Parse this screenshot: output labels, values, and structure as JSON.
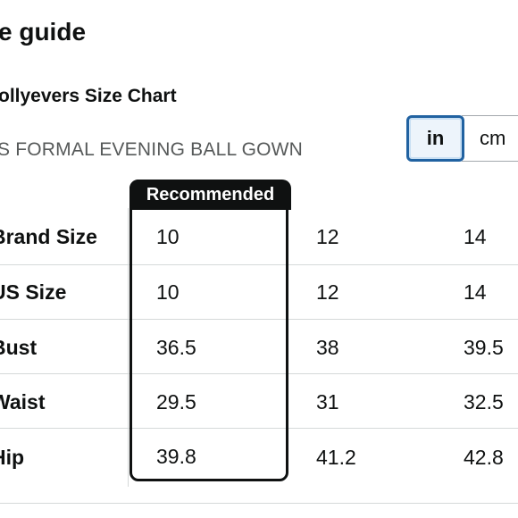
{
  "header": {
    "title": "e guide",
    "chart_name": "ollyevers Size Chart",
    "product": "S FORMAL EVENING BALL GOWN"
  },
  "units": {
    "in": "in",
    "cm": "cm",
    "selected": "in"
  },
  "recommended_label": "Recommended",
  "rows": [
    {
      "label": "Brand Size",
      "values": [
        "10",
        "12",
        "14"
      ]
    },
    {
      "label": "US Size",
      "values": [
        "10",
        "12",
        "14"
      ]
    },
    {
      "label": "Bust",
      "values": [
        "36.5",
        "38",
        "39.5"
      ]
    },
    {
      "label": "Waist",
      "values": [
        "29.5",
        "31",
        "32.5"
      ]
    },
    {
      "label": "Hip",
      "values": [
        "39.8",
        "41.2",
        "42.8"
      ]
    }
  ],
  "colors": {
    "accent": "#2162a1",
    "text": "#0f1111",
    "muted": "#565959",
    "divider": "#d5d9d9"
  }
}
